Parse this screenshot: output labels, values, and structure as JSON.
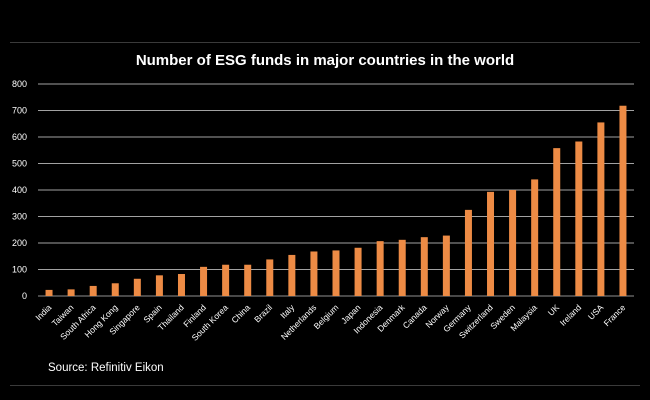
{
  "chart_data": {
    "type": "bar",
    "title": "Number of ESG funds in major countries in the world",
    "xlabel": "",
    "ylabel": "",
    "ylim": [
      0,
      800
    ],
    "yticks": [
      0,
      100,
      200,
      300,
      400,
      500,
      600,
      700,
      800
    ],
    "grid": true,
    "bar_color": "#ED8B45",
    "background": "#000000",
    "categories": [
      "India",
      "Taiwan",
      "South Africa",
      "Hong Kong",
      "Singapore",
      "Spain",
      "Thailand",
      "Finland",
      "South Korea",
      "China",
      "Brazil",
      "Italy",
      "Netherlands",
      "Belgium",
      "Japan",
      "Indonesia",
      "Denmark",
      "Canada",
      "Norway",
      "Germany",
      "Switzerland",
      "Sweden",
      "Malaysia",
      "UK",
      "Ireland",
      "USA",
      "France"
    ],
    "values": [
      23,
      25,
      38,
      48,
      65,
      78,
      83,
      110,
      118,
      118,
      138,
      155,
      168,
      172,
      182,
      207,
      212,
      222,
      228,
      325,
      393,
      400,
      440,
      558,
      583,
      655,
      718
    ]
  },
  "source": "Source: Refinitiv Eikon"
}
